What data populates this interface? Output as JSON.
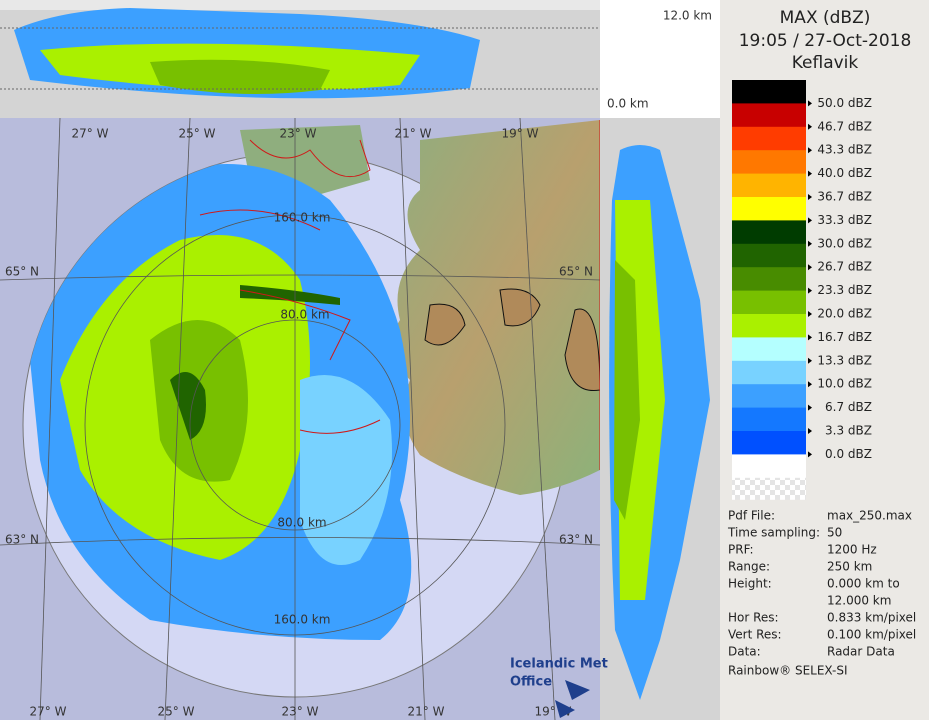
{
  "header": {
    "title": "MAX (dBZ)",
    "time": "19:05 / 27-Oct-2018",
    "site": "Keflavik"
  },
  "legend": {
    "items": [
      {
        "color": "#000000",
        "label": "50.0 dBZ"
      },
      {
        "color": "#c80000",
        "label": "46.7 dBZ"
      },
      {
        "color": "#ff3c00",
        "label": "43.3 dBZ"
      },
      {
        "color": "#ff7800",
        "label": "40.0 dBZ"
      },
      {
        "color": "#ffb400",
        "label": "36.7 dBZ"
      },
      {
        "color": "#ffff00",
        "label": "33.3 dBZ"
      },
      {
        "color": "#003c00",
        "label": "30.0 dBZ"
      },
      {
        "color": "#206400",
        "label": "26.7 dBZ"
      },
      {
        "color": "#488c00",
        "label": "23.3 dBZ"
      },
      {
        "color": "#78c000",
        "label": "20.0 dBZ"
      },
      {
        "color": "#aaf000",
        "label": "16.7 dBZ"
      },
      {
        "color": "#b4ffff",
        "label": "13.3 dBZ"
      },
      {
        "color": "#78d2ff",
        "label": "10.0 dBZ"
      },
      {
        "color": "#3ca0ff",
        "label": "6.7 dBZ"
      },
      {
        "color": "#1478ff",
        "label": "3.3 dBZ"
      },
      {
        "color": "#0050ff",
        "label": "0.0 dBZ"
      },
      {
        "color": "#ffffff"
      }
    ]
  },
  "info": {
    "rows": [
      {
        "key": "Pdf File:",
        "value": "max_250.max"
      },
      {
        "key": "Time sampling:",
        "value": "50"
      },
      {
        "key": "PRF:",
        "value": "1200 Hz"
      },
      {
        "key": "Range:",
        "value": "250 km"
      },
      {
        "key": "Height:",
        "value": "0.000 km to",
        "value2": "12.000 km"
      },
      {
        "key": "Hor Res:",
        "value": "0.833 km/pixel"
      },
      {
        "key": "Vert Res:",
        "value": "0.100 km/pixel"
      },
      {
        "key": "Data:",
        "value": "Radar Data"
      }
    ],
    "footer": "Rainbow® SELEX-SI"
  },
  "map": {
    "height_top": "12.0 km",
    "height_bottom": "0.0 km",
    "lon_top": [
      "27° W",
      "25° W",
      "23° W",
      "21° W",
      "19° W"
    ],
    "lon_bottom": [
      "27° W",
      "25° W",
      "23° W",
      "21° W",
      "19° W"
    ],
    "lat_left": [
      "65° N",
      "63° N"
    ],
    "lat_right": [
      "65° N",
      "63° N"
    ],
    "range_labels": [
      "160.0 km",
      "80.0 km",
      "80.0 km",
      "160.0 km"
    ],
    "logo": [
      "Icelandic Met",
      "Office"
    ]
  }
}
